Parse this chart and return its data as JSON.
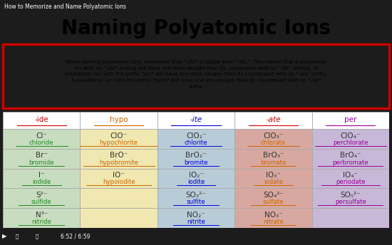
{
  "title": "Naming Polyatomic Ions",
  "topbar_label": "How to Memorize and Name Polyatomic Ions",
  "bottombar_label": "6:52 / 6:59",
  "col_headers": [
    "-ide",
    "hypo",
    "-ite",
    "-ate",
    "per"
  ],
  "col_header_colors": [
    "#cc0000",
    "#cc6600",
    "#0000cc",
    "#cc0000",
    "#990099"
  ],
  "col_bg_colors": [
    "#c8ddc0",
    "#f0e8b0",
    "#b8ccd8",
    "#d8a8a0",
    "#c8b8d8"
  ],
  "header_bg": "#ffffff",
  "table_border": "#aaaaaa",
  "rows": [
    {
      "formula_col0": "Cl⁻",
      "name_col0": "chloride",
      "formula_col1": "ClO⁻",
      "name_col1": "hypochlorite",
      "formula_col2": "ClO₂⁻",
      "name_col2": "chlorite",
      "formula_col3": "ClO₃⁻",
      "name_col3": "chlorate",
      "formula_col4": "ClO₄⁻",
      "name_col4": "perchlorate"
    },
    {
      "formula_col0": "Br⁻",
      "name_col0": "bromide",
      "formula_col1": "BrO⁻",
      "name_col1": "hypobromite",
      "formula_col2": "BrO₂⁻",
      "name_col2": "bromite",
      "formula_col3": "BrO₃⁻",
      "name_col3": "bromate",
      "formula_col4": "BrO₄⁻",
      "name_col4": "perbromate"
    },
    {
      "formula_col0": "I⁻",
      "name_col0": "iodide",
      "formula_col1": "IO⁻",
      "name_col1": "hypoiodite",
      "formula_col2": "IO₂⁻",
      "name_col2": "iodite",
      "formula_col3": "IO₃⁻",
      "name_col3": "iodate",
      "formula_col4": "IO₄⁻",
      "name_col4": "periodate"
    },
    {
      "formula_col0": "S²⁻",
      "name_col0": "sulfide",
      "formula_col1": "",
      "name_col1": "",
      "formula_col2": "SO₃²⁻",
      "name_col2": "sulfite",
      "formula_col3": "SO₄²⁻",
      "name_col3": "sulfate",
      "formula_col4": "SO₅²⁻",
      "name_col4": "persulfate"
    },
    {
      "formula_col0": "N³⁻",
      "name_col0": "nitride",
      "formula_col1": "",
      "name_col1": "",
      "formula_col2": "NO₂⁻",
      "name_col2": "nitrite",
      "formula_col3": "NO₃⁻",
      "name_col3": "nitrate",
      "formula_col4": "",
      "name_col4": ""
    }
  ],
  "name_colors": {
    "col0": "#228822",
    "col1": "#cc6600",
    "col2": "#0000dd",
    "col3": "#cc6600",
    "col4": "#990099"
  },
  "formula_color": "#333333",
  "bg_main": "#e8e8e8",
  "title_bg": "#e8e8e8",
  "desc_bg": "#fffff0",
  "desc_border": "#cc0000",
  "video_bar_bg": "#1c1c1c",
  "video_bar_fg": "#ffffff"
}
